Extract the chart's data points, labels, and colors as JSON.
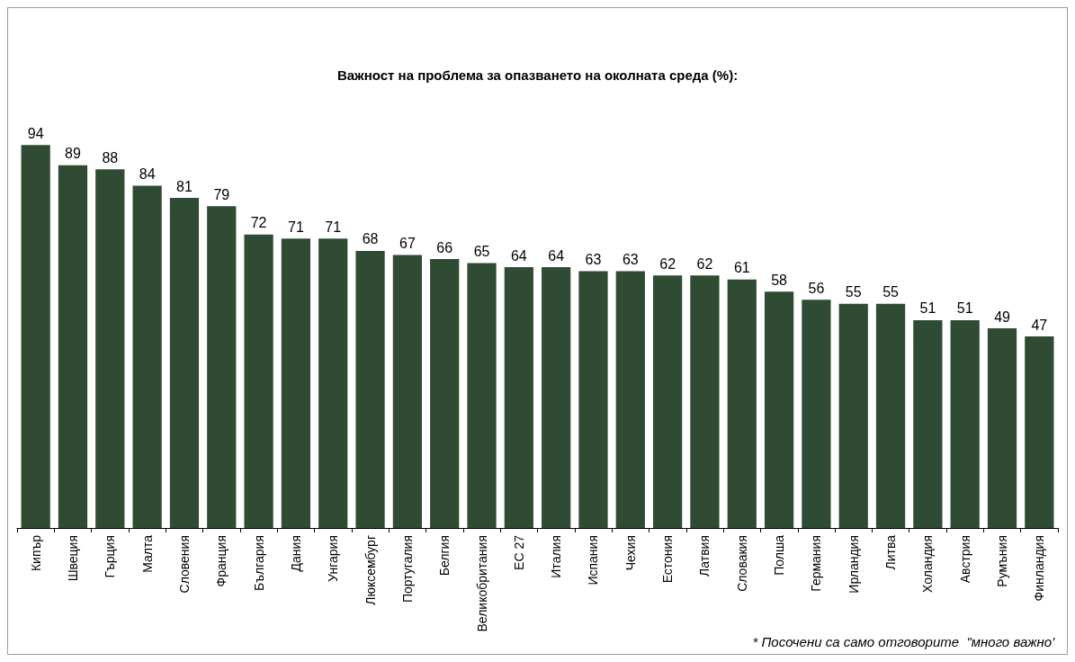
{
  "chart_data": {
    "type": "bar",
    "title": "Важност на проблема за опазването на околната среда (%):",
    "categories": [
      "Кипър",
      "Швеция",
      "Гърция",
      "Малта",
      "Словения",
      "Франция",
      "България",
      "Дания",
      "Унгария",
      "Люксембург",
      "Португалия",
      "Белгия",
      "Великобритания",
      "ЕС 27",
      "Италия",
      "Испания",
      "Чехия",
      "Естония",
      "Латвия",
      "Словакия",
      "Полша",
      "Германия",
      "Ирландия",
      "Литва",
      "Холандия",
      "Австрия",
      "Румъния",
      "Финландия"
    ],
    "values": [
      94,
      89,
      88,
      84,
      81,
      79,
      72,
      71,
      71,
      68,
      67,
      66,
      65,
      64,
      64,
      63,
      63,
      62,
      62,
      61,
      58,
      56,
      55,
      55,
      51,
      51,
      49,
      47
    ],
    "color": "#2f4b33",
    "data_labels": true,
    "annotations": [
      "* Посочени са само отговорите  \"много важно'"
    ]
  }
}
